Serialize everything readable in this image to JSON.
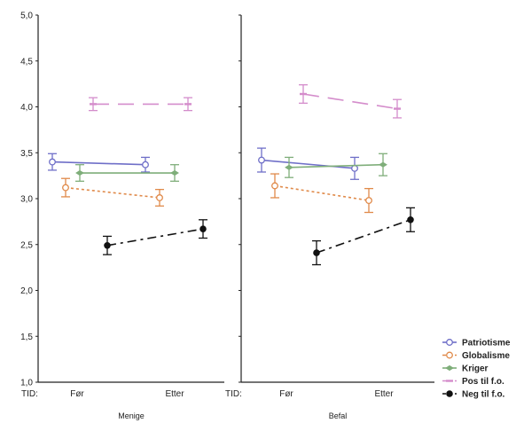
{
  "chart_data": {
    "type": "line",
    "ylim": [
      1.0,
      5.0
    ],
    "y_ticks": [
      "1,0",
      "1,5",
      "2,0",
      "2,5",
      "3,0",
      "3,5",
      "4,0",
      "4,5",
      "5,0"
    ],
    "x_axis_prefix": "TID:",
    "x_ticks": [
      "Før",
      "Etter"
    ],
    "grid": false,
    "legend_position": "bottom-right",
    "series_styles": [
      {
        "name": "Patriotisme",
        "color": "#6f6fc8",
        "marker": "circle-open",
        "dash": ""
      },
      {
        "name": "Globalisme",
        "color": "#e08a4a",
        "marker": "circle-open",
        "dash": "3,3"
      },
      {
        "name": "Kriger",
        "color": "#7fae7a",
        "marker": "diamond",
        "dash": ""
      },
      {
        "name": "Pos til f.o.",
        "color": "#d48ccb",
        "marker": "bar",
        "dash": "18,10"
      },
      {
        "name": "Neg til f.o.",
        "color": "#111111",
        "marker": "circle-filled",
        "dash": "10,5,3,5"
      }
    ],
    "panels": [
      {
        "label": "Menige",
        "series": [
          {
            "name": "Patriotisme",
            "values": [
              3.4,
              3.37
            ],
            "errors": [
              0.09,
              0.08
            ]
          },
          {
            "name": "Globalisme",
            "values": [
              3.12,
              3.01
            ],
            "errors": [
              0.1,
              0.09
            ]
          },
          {
            "name": "Kriger",
            "values": [
              3.28,
              3.28
            ],
            "errors": [
              0.09,
              0.09
            ]
          },
          {
            "name": "Pos til f.o.",
            "values": [
              4.03,
              4.03
            ],
            "errors": [
              0.07,
              0.07
            ]
          },
          {
            "name": "Neg til f.o.",
            "values": [
              2.49,
              2.67
            ],
            "errors": [
              0.1,
              0.1
            ]
          }
        ]
      },
      {
        "label": "Befal",
        "series": [
          {
            "name": "Patriotisme",
            "values": [
              3.42,
              3.33
            ],
            "errors": [
              0.13,
              0.12
            ]
          },
          {
            "name": "Globalisme",
            "values": [
              3.14,
              2.98
            ],
            "errors": [
              0.13,
              0.13
            ]
          },
          {
            "name": "Kriger",
            "values": [
              3.34,
              3.37
            ],
            "errors": [
              0.11,
              0.12
            ]
          },
          {
            "name": "Pos til f.o.",
            "values": [
              4.14,
              3.98
            ],
            "errors": [
              0.1,
              0.1
            ]
          },
          {
            "name": "Neg til f.o.",
            "values": [
              2.41,
              2.77
            ],
            "errors": [
              0.13,
              0.13
            ]
          }
        ]
      }
    ]
  }
}
